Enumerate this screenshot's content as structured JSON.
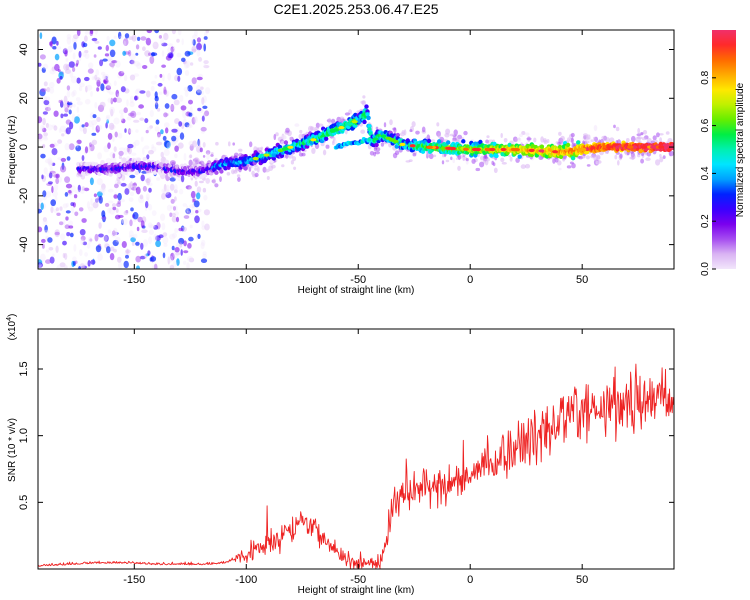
{
  "title": "C2E1.2025.253.06.47.E25",
  "colors": {
    "snr_line": "#ee2222",
    "axis": "#000000",
    "background": "#ffffff"
  },
  "chart_data": [
    {
      "type": "heatmap",
      "xlabel": "Height of straight line (km)",
      "ylabel": "Frequency (Hz)",
      "xlim": [
        -193,
        91
      ],
      "ylim": [
        -50,
        48
      ],
      "xticks": [
        -150,
        -100,
        -50,
        0,
        50
      ],
      "xtick_labels": [
        "-150",
        "-100",
        "-50",
        "0",
        "50"
      ],
      "yticks": [
        -40,
        -20,
        0,
        20,
        40
      ],
      "ytick_labels": [
        "-40",
        "-20",
        "0",
        "20",
        "40"
      ],
      "colorbar": {
        "label": "Normalized spectral amplitude",
        "range": [
          0,
          1
        ],
        "ticks": [
          0.0,
          0.2,
          0.4,
          0.6,
          0.8
        ],
        "tick_labels": [
          "0.0",
          "0.2",
          "0.4",
          "0.6",
          "0.8"
        ],
        "colormap": [
          "#f2e6fb",
          "#d9b3f3",
          "#a64df0",
          "#7a00ee",
          "#3a00ff",
          "#0022ff",
          "#00a0ff",
          "#00e5ff",
          "#00f0b0",
          "#00ee44",
          "#66ee00",
          "#c0f000",
          "#ffe800",
          "#ffaa00",
          "#ff6a00",
          "#ff2a2a",
          "#f0306a"
        ]
      },
      "ridge": {
        "description": "frequency track (Hz) vs height (km)",
        "x": [
          -170,
          -160,
          -150,
          -140,
          -130,
          -120,
          -110,
          -100,
          -90,
          -80,
          -70,
          -60,
          -50,
          -46,
          -44,
          -40,
          -35,
          -30,
          -20,
          0,
          20,
          40,
          60,
          90
        ],
        "y": [
          -9,
          -9,
          -8,
          -8,
          -10,
          -10,
          -7,
          -6,
          -3,
          0,
          3,
          7,
          11,
          14,
          2,
          5,
          3,
          1,
          0,
          -1,
          -1,
          -2,
          0,
          0
        ],
        "secondary_branch": {
          "x": [
            -60,
            -55,
            -50,
            -45
          ],
          "y": [
            0,
            1,
            2,
            3
          ]
        }
      }
    },
    {
      "type": "line",
      "xlabel": "Height of straight line (km)",
      "ylabel": "SNR (10 * v/v)",
      "y_multiplier": "(x10",
      "y_multiplier_exp": "4",
      "y_multiplier_close": ")",
      "xlim": [
        -193,
        91
      ],
      "ylim": [
        0,
        1.8
      ],
      "xticks": [
        -150,
        -100,
        -50,
        0,
        50
      ],
      "xtick_labels": [
        "-150",
        "-100",
        "-50",
        "0",
        "50"
      ],
      "yticks": [
        0.5,
        1.0,
        1.5
      ],
      "ytick_labels": [
        "0.5",
        "1.0",
        "1.5"
      ],
      "series": [
        {
          "name": "SNR",
          "x": [
            -193,
            -180,
            -170,
            -160,
            -150,
            -140,
            -130,
            -120,
            -110,
            -100,
            -95,
            -90,
            -85,
            -80,
            -75,
            -70,
            -65,
            -60,
            -55,
            -50,
            -45,
            -40,
            -37,
            -35,
            -30,
            -25,
            -20,
            -15,
            -10,
            -5,
            0,
            5,
            10,
            15,
            20,
            25,
            30,
            35,
            40,
            45,
            50,
            55,
            60,
            65,
            70,
            75,
            80,
            85,
            90
          ],
          "y": [
            0.02,
            0.03,
            0.04,
            0.04,
            0.04,
            0.03,
            0.03,
            0.03,
            0.04,
            0.1,
            0.14,
            0.2,
            0.25,
            0.3,
            0.36,
            0.3,
            0.2,
            0.12,
            0.07,
            0.05,
            0.03,
            0.06,
            0.2,
            0.45,
            0.55,
            0.58,
            0.6,
            0.62,
            0.63,
            0.68,
            0.72,
            0.78,
            0.82,
            0.85,
            0.88,
            0.95,
            1.0,
            1.05,
            1.1,
            1.15,
            1.2,
            1.2,
            1.22,
            1.25,
            1.25,
            1.22,
            1.25,
            1.28,
            1.3
          ]
        }
      ]
    }
  ]
}
